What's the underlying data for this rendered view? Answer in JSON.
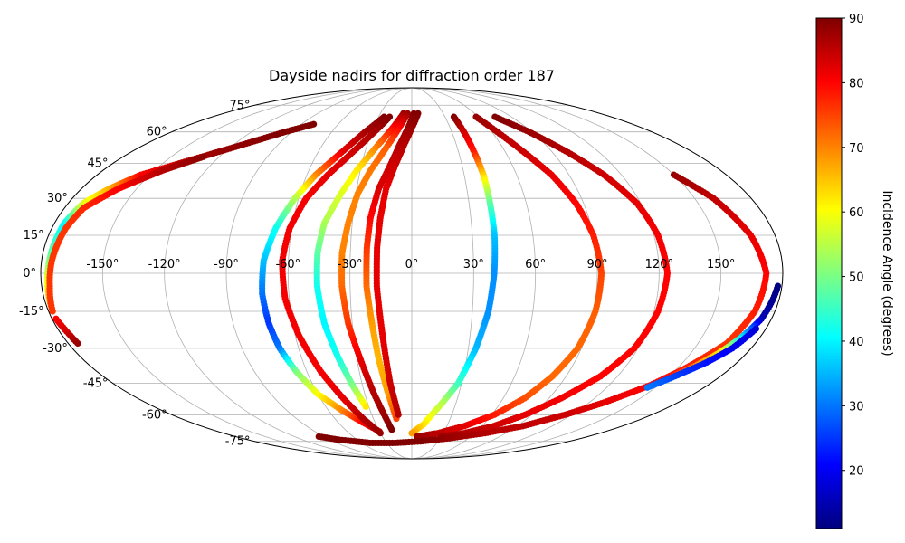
{
  "chart_data": {
    "type": "scatter",
    "projection": "mollweide",
    "title": "Dayside nadirs for diffraction order 187",
    "xlabel": "",
    "ylabel": "",
    "grid": true,
    "lon_range": [
      -180,
      180
    ],
    "lat_range": [
      -90,
      90
    ],
    "lon_ticks": [
      -150,
      -120,
      -90,
      -60,
      -30,
      0,
      30,
      60,
      90,
      120,
      150
    ],
    "lon_tick_labels": [
      "-150°",
      "-120°",
      "-90°",
      "-60°",
      "-30°",
      "0°",
      "30°",
      "60°",
      "90°",
      "120°",
      "150°"
    ],
    "lat_ticks": [
      -75,
      -60,
      -45,
      -30,
      -15,
      0,
      15,
      30,
      45,
      60,
      75
    ],
    "lat_tick_labels": [
      "-75°",
      "-60°",
      "-45°",
      "-30°",
      "-15°",
      "0°",
      "15°",
      "30°",
      "45°",
      "60°",
      "75°"
    ],
    "colorbar": {
      "label": "Incidence Angle (degrees)",
      "colormap": "jet",
      "range": [
        11,
        90
      ],
      "ticks": [
        20,
        30,
        40,
        50,
        60,
        70,
        80,
        90
      ],
      "tick_labels": [
        "20",
        "30",
        "40",
        "50",
        "60",
        "70",
        "80",
        "90"
      ],
      "placement": "right"
    },
    "tracks": [
      {
        "points": [
          [
            -178,
            -15,
            72
          ],
          [
            -177,
            -5,
            62
          ],
          [
            -176,
            8,
            48
          ],
          [
            -175,
            20,
            40
          ],
          [
            -172,
            28,
            58
          ],
          [
            -165,
            34,
            66
          ],
          [
            -155,
            40,
            80
          ],
          [
            -140,
            45,
            85
          ],
          [
            -125,
            50,
            88
          ],
          [
            -110,
            55,
            89
          ],
          [
            -95,
            60,
            90
          ],
          [
            -80,
            64,
            90
          ]
        ]
      },
      {
        "points": [
          [
            -178,
            -15,
            76
          ],
          [
            -176,
            -5,
            76
          ],
          [
            -175,
            5,
            76
          ],
          [
            -173,
            18,
            76
          ],
          [
            -170,
            26,
            77
          ],
          [
            -160,
            34,
            80
          ],
          [
            -145,
            42,
            86
          ],
          [
            -130,
            48,
            89
          ]
        ]
      },
      {
        "points": [
          [
            -178,
            -18,
            80
          ],
          [
            -176,
            -24,
            84
          ],
          [
            -175,
            -28,
            88
          ]
        ]
      },
      {
        "points": [
          [
            -25,
            68,
            90
          ],
          [
            -35,
            60,
            87
          ],
          [
            -45,
            50,
            82
          ],
          [
            -55,
            40,
            70
          ],
          [
            -62,
            30,
            55
          ],
          [
            -68,
            18,
            42
          ],
          [
            -72,
            5,
            36
          ],
          [
            -73,
            -8,
            30
          ],
          [
            -72,
            -20,
            25
          ],
          [
            -70,
            -30,
            30
          ],
          [
            -66,
            -40,
            50
          ],
          [
            -60,
            -50,
            60
          ],
          [
            -50,
            -58,
            70
          ],
          [
            -40,
            -64,
            80
          ],
          [
            -30,
            -69,
            85
          ]
        ]
      },
      {
        "points": [
          [
            -20,
            68,
            90
          ],
          [
            -28,
            60,
            87
          ],
          [
            -38,
            50,
            84
          ],
          [
            -48,
            40,
            82
          ],
          [
            -56,
            30,
            81
          ],
          [
            -61,
            18,
            81
          ],
          [
            -63,
            5,
            81
          ],
          [
            -62,
            -10,
            81
          ],
          [
            -58,
            -25,
            81
          ],
          [
            -52,
            -40,
            81
          ],
          [
            -45,
            -52,
            82
          ],
          [
            -38,
            -62,
            86
          ],
          [
            -30,
            -70,
            88
          ]
        ]
      },
      {
        "points": [
          [
            -8,
            70,
            88
          ],
          [
            -15,
            62,
            80
          ],
          [
            -24,
            52,
            70
          ],
          [
            -32,
            42,
            62
          ],
          [
            -38,
            32,
            58
          ],
          [
            -44,
            20,
            54
          ],
          [
            -46,
            8,
            48
          ],
          [
            -46,
            -5,
            42
          ],
          [
            -44,
            -20,
            40
          ],
          [
            -40,
            -34,
            42
          ],
          [
            -36,
            -46,
            50
          ],
          [
            -32,
            -56,
            62
          ]
        ]
      },
      {
        "points": [
          [
            -4,
            70,
            88
          ],
          [
            -10,
            62,
            80
          ],
          [
            -17,
            52,
            73
          ],
          [
            -24,
            42,
            71
          ],
          [
            -29,
            32,
            70
          ],
          [
            -32,
            20,
            70
          ],
          [
            -34,
            8,
            70
          ],
          [
            -34,
            -5,
            72
          ],
          [
            -32,
            -20,
            76
          ],
          [
            -28,
            -35,
            82
          ],
          [
            -24,
            -50,
            86
          ],
          [
            -20,
            -62,
            88
          ],
          [
            -18,
            -68,
            90
          ]
        ]
      },
      {
        "points": [
          [
            2,
            70,
            90
          ],
          [
            -3,
            62,
            88
          ],
          [
            -8,
            54,
            86
          ],
          [
            -13,
            44,
            84
          ],
          [
            -18,
            34,
            83
          ],
          [
            -21,
            22,
            80
          ],
          [
            -22,
            10,
            76
          ],
          [
            -22,
            -5,
            72
          ],
          [
            -20,
            -20,
            68
          ],
          [
            -18,
            -35,
            66
          ],
          [
            -15,
            -50,
            68
          ],
          [
            -12,
            -62,
            75
          ]
        ]
      },
      {
        "points": [
          [
            6,
            70,
            90
          ],
          [
            0,
            62,
            88
          ],
          [
            -5,
            54,
            86
          ],
          [
            -10,
            44,
            84
          ],
          [
            -14,
            34,
            82
          ],
          [
            -16,
            22,
            82
          ],
          [
            -17,
            10,
            82
          ],
          [
            -17,
            -5,
            82
          ],
          [
            -15,
            -25,
            82
          ],
          [
            -13,
            -45,
            84
          ],
          [
            -10,
            -60,
            86
          ]
        ]
      },
      {
        "points": [
          [
            38,
            68,
            90
          ],
          [
            39,
            60,
            84
          ],
          [
            40,
            50,
            78
          ],
          [
            41,
            40,
            64
          ],
          [
            41,
            28,
            48
          ],
          [
            41,
            15,
            36
          ],
          [
            40,
            0,
            32
          ],
          [
            38,
            -15,
            32
          ],
          [
            34,
            -30,
            35
          ],
          [
            28,
            -45,
            45
          ],
          [
            20,
            -55,
            55
          ],
          [
            10,
            -65,
            62
          ],
          [
            0,
            -70,
            68
          ]
        ]
      },
      {
        "points": [
          [
            58,
            68,
            88
          ],
          [
            64,
            60,
            86
          ],
          [
            72,
            50,
            84
          ],
          [
            80,
            40,
            82
          ],
          [
            86,
            28,
            80
          ],
          [
            90,
            15,
            78
          ],
          [
            92,
            0,
            75
          ],
          [
            91,
            -15,
            73
          ],
          [
            88,
            -30,
            72
          ],
          [
            82,
            -42,
            72
          ],
          [
            74,
            -52,
            74
          ],
          [
            62,
            -60,
            78
          ],
          [
            45,
            -66,
            82
          ],
          [
            25,
            -70,
            85
          ],
          [
            5,
            -72,
            88
          ]
        ]
      },
      {
        "points": [
          [
            75,
            68,
            90
          ],
          [
            88,
            60,
            88
          ],
          [
            100,
            50,
            86
          ],
          [
            110,
            40,
            84
          ],
          [
            118,
            28,
            82
          ],
          [
            122,
            15,
            81
          ],
          [
            124,
            0,
            80
          ],
          [
            122,
            -15,
            80
          ],
          [
            118,
            -30,
            80
          ],
          [
            110,
            -42,
            80
          ],
          [
            98,
            -52,
            81
          ],
          [
            85,
            -60,
            82
          ],
          [
            70,
            -66,
            84
          ],
          [
            50,
            -70,
            86
          ],
          [
            30,
            -72,
            88
          ]
        ]
      },
      {
        "points": [
          [
            150,
            40,
            88
          ],
          [
            160,
            30,
            85
          ],
          [
            168,
            15,
            82
          ],
          [
            172,
            0,
            80
          ],
          [
            170,
            -15,
            78
          ],
          [
            165,
            -28,
            76
          ],
          [
            155,
            -38,
            78
          ],
          [
            145,
            -46,
            80
          ],
          [
            130,
            -54,
            82
          ],
          [
            115,
            -60,
            84
          ],
          [
            95,
            -66,
            85
          ],
          [
            70,
            -70,
            86
          ],
          [
            40,
            -73,
            88
          ],
          [
            10,
            -75,
            90
          ],
          [
            -20,
            -76,
            90
          ],
          [
            -50,
            -76,
            90
          ],
          [
            -80,
            -74,
            90
          ],
          [
            -95,
            -72,
            90
          ]
        ]
      },
      {
        "points": [
          [
            178,
            -5,
            11
          ],
          [
            177,
            -10,
            12
          ],
          [
            175,
            -18,
            15
          ],
          [
            170,
            -26,
            40
          ],
          [
            165,
            -32,
            62
          ],
          [
            158,
            -38,
            70
          ],
          [
            150,
            -43,
            80
          ]
        ]
      },
      {
        "points": [
          [
            175,
            -22,
            18
          ],
          [
            170,
            -30,
            20
          ],
          [
            163,
            -36,
            22
          ],
          [
            155,
            -41,
            25
          ],
          [
            145,
            -47,
            30
          ]
        ]
      }
    ]
  }
}
